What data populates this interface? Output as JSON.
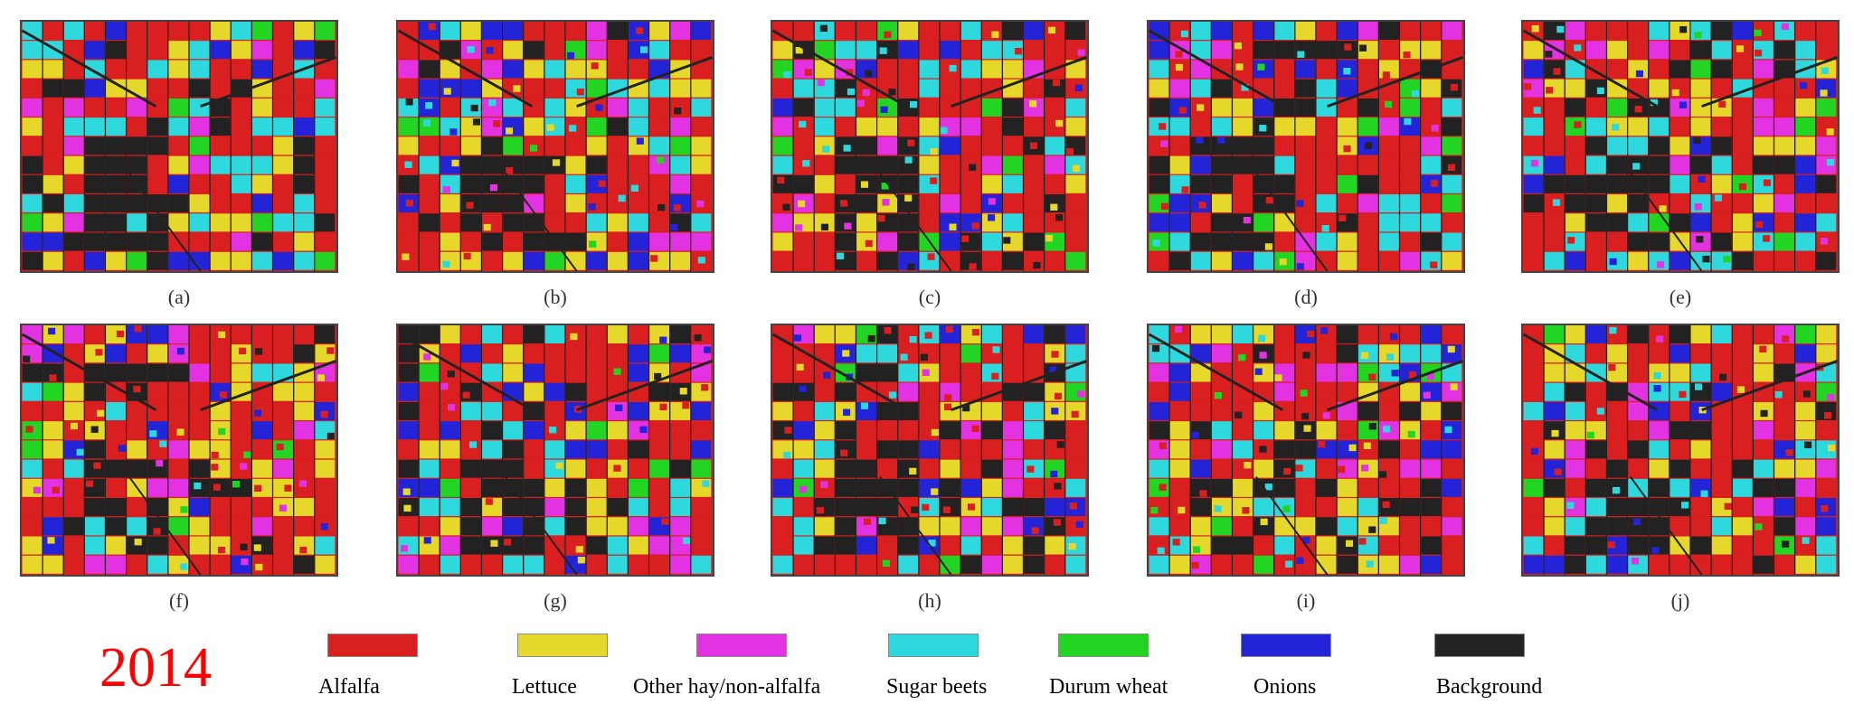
{
  "panels": [
    {
      "label": "(a)"
    },
    {
      "label": "(b)"
    },
    {
      "label": "(c)"
    },
    {
      "label": "(d)"
    },
    {
      "label": "(e)"
    },
    {
      "label": "(f)"
    },
    {
      "label": "(g)"
    },
    {
      "label": "(h)"
    },
    {
      "label": "(i)"
    },
    {
      "label": "(j)"
    }
  ],
  "legend": {
    "year": "2014",
    "items": [
      {
        "label": "Alfalfa",
        "color": "#d91f1f"
      },
      {
        "label": "Lettuce",
        "color": "#e5d82a"
      },
      {
        "label": "Other hay/non-alfalfa",
        "color": "#e232e2"
      },
      {
        "label": "Sugar beets",
        "color": "#2ed9dd"
      },
      {
        "label": "Durum wheat",
        "color": "#22d522"
      },
      {
        "label": "Onions",
        "color": "#2323d8"
      },
      {
        "label": "Background",
        "color": "#222222"
      }
    ]
  }
}
